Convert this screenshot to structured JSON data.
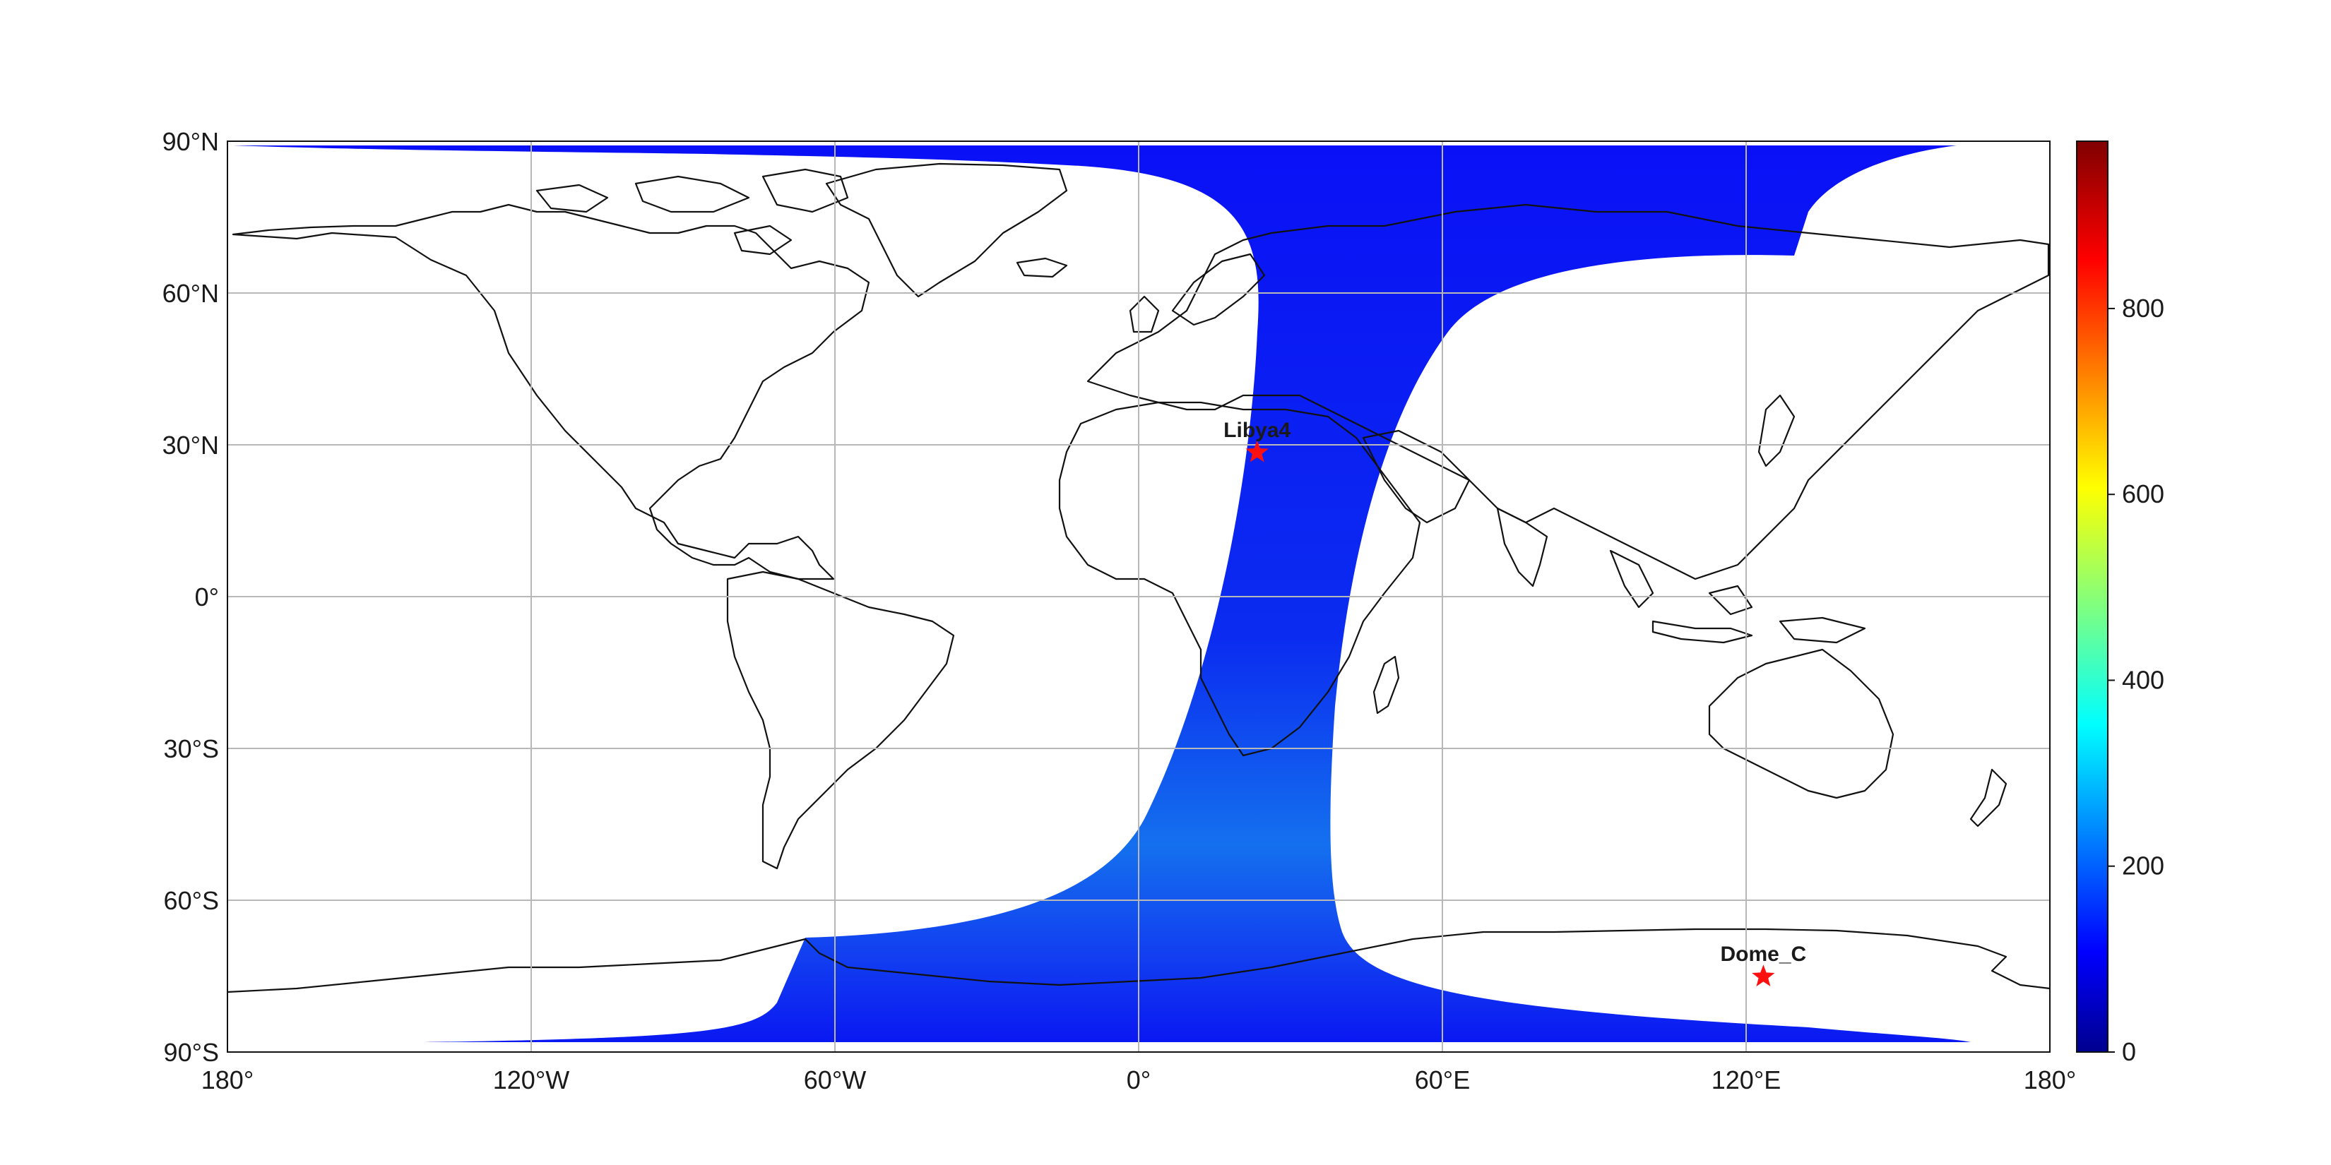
{
  "map": {
    "projection": "PlateCarree",
    "extent": {
      "lon": [
        -180,
        180
      ],
      "lat": [
        -90,
        90
      ]
    },
    "lon_ticks": [
      {
        "value": -180,
        "label": "180°"
      },
      {
        "value": -120,
        "label": "120°W"
      },
      {
        "value": -60,
        "label": "60°W"
      },
      {
        "value": 0,
        "label": "0°"
      },
      {
        "value": 60,
        "label": "60°E"
      },
      {
        "value": 120,
        "label": "120°E"
      },
      {
        "value": 180,
        "label": "180°"
      }
    ],
    "lat_ticks": [
      {
        "value": 90,
        "label": "90°N"
      },
      {
        "value": 60,
        "label": "60°N"
      },
      {
        "value": 30,
        "label": "30°N"
      },
      {
        "value": 0,
        "label": "0°"
      },
      {
        "value": -30,
        "label": "30°S"
      },
      {
        "value": -60,
        "label": "60°S"
      },
      {
        "value": -90,
        "label": "90°S"
      }
    ],
    "grid": true,
    "swath_color": "#1030f0",
    "sites": [
      {
        "name": "Libya4",
        "lon": 23.4,
        "lat": 28.5,
        "color": "#ff1010"
      },
      {
        "name": "Dome_C",
        "lon": 123.4,
        "lat": -75.1,
        "color": "#ff1010"
      }
    ]
  },
  "colorbar": {
    "colormap": "jet",
    "range": [
      0,
      980
    ],
    "ticks": [
      {
        "value": 0,
        "label": "0"
      },
      {
        "value": 200,
        "label": "200"
      },
      {
        "value": 400,
        "label": "400"
      },
      {
        "value": 600,
        "label": "600"
      },
      {
        "value": 800,
        "label": "800"
      }
    ]
  }
}
